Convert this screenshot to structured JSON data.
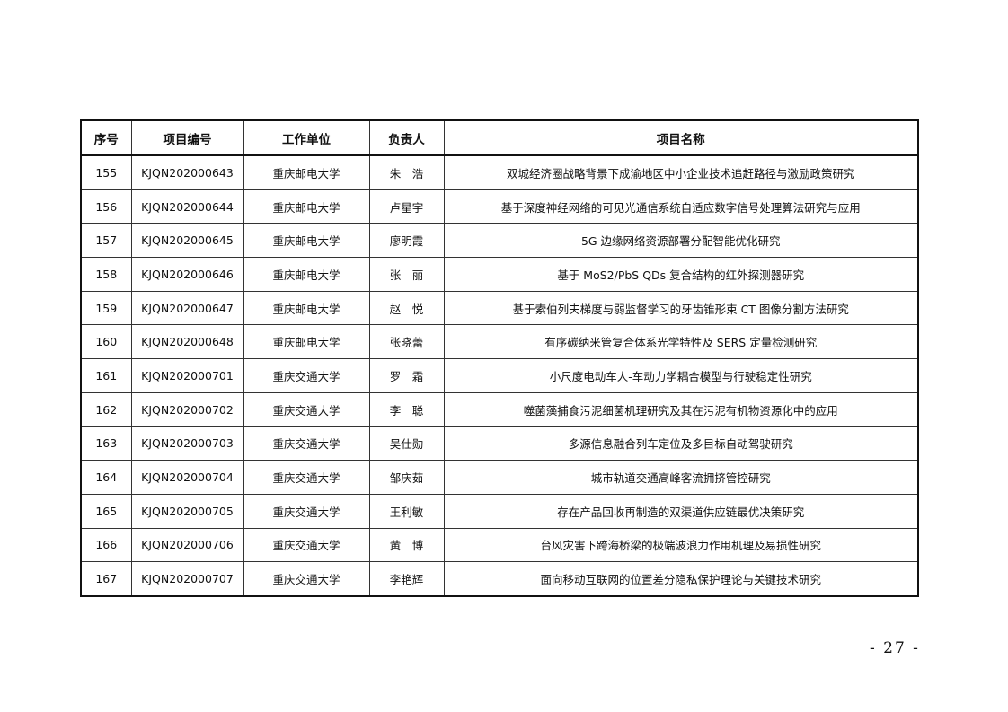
{
  "table": {
    "headers": [
      "序号",
      "项目编号",
      "工作单位",
      "负责人",
      "项目名称"
    ],
    "rows": [
      [
        "155",
        "KJQN202000643",
        "重庆邮电大学",
        "朱　浩",
        "双城经济圈战略背景下成渝地区中小企业技术追赶路径与激励政策研究"
      ],
      [
        "156",
        "KJQN202000644",
        "重庆邮电大学",
        "卢星宇",
        "基于深度神经网络的可见光通信系统自适应数字信号处理算法研究与应用"
      ],
      [
        "157",
        "KJQN202000645",
        "重庆邮电大学",
        "廖明霞",
        "5G 边缘网络资源部署分配智能优化研究"
      ],
      [
        "158",
        "KJQN202000646",
        "重庆邮电大学",
        "张　丽",
        "基于 MoS2/PbS QDs 复合结构的红外探测器研究"
      ],
      [
        "159",
        "KJQN202000647",
        "重庆邮电大学",
        "赵　悦",
        "基于索伯列夫梯度与弱监督学习的牙齿锥形束 CT 图像分割方法研究"
      ],
      [
        "160",
        "KJQN202000648",
        "重庆邮电大学",
        "张晓蕾",
        "有序碳纳米管复合体系光学特性及 SERS 定量检测研究"
      ],
      [
        "161",
        "KJQN202000701",
        "重庆交通大学",
        "罗　霜",
        "小尺度电动车人-车动力学耦合模型与行驶稳定性研究"
      ],
      [
        "162",
        "KJQN202000702",
        "重庆交通大学",
        "李　聪",
        "噬菌藻捕食污泥细菌机理研究及其在污泥有机物资源化中的应用"
      ],
      [
        "163",
        "KJQN202000703",
        "重庆交通大学",
        "吴仕勋",
        "多源信息融合列车定位及多目标自动驾驶研究"
      ],
      [
        "164",
        "KJQN202000704",
        "重庆交通大学",
        "邹庆茹",
        "城市轨道交通高峰客流拥挤管控研究"
      ],
      [
        "165",
        "KJQN202000705",
        "重庆交通大学",
        "王利敏",
        "存在产品回收再制造的双渠道供应链最优决策研究"
      ],
      [
        "166",
        "KJQN202000706",
        "重庆交通大学",
        "黄　博",
        "台风灾害下跨海桥梁的极端波浪力作用机理及易损性研究"
      ],
      [
        "167",
        "KJQN202000707",
        "重庆交通大学",
        "李艳辉",
        "面向移动互联网的位置差分隐私保护理论与关键技术研究"
      ]
    ]
  },
  "page_number": "- 27 -"
}
